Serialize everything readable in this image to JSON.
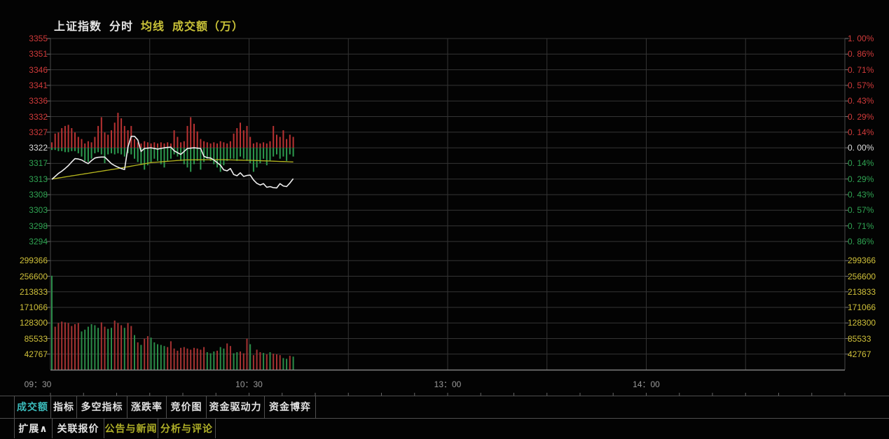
{
  "title": {
    "name": "上证指数",
    "mode": "分时",
    "ma": "均线",
    "vol": "成交额（万）"
  },
  "colors": {
    "up": "#d03a3a",
    "down": "#2fa352",
    "flat": "#dcdcdc",
    "volume_label": "#cfc03a",
    "ma_line": "#b5b51e",
    "price_line": "#efefef",
    "active_tab": "#3bbcbc",
    "news_tab": "#b0b028",
    "buy_bar": "#b83232",
    "sell_bar": "#2c9a4e",
    "vol_red": "#a63232",
    "vol_green": "#2a8c48",
    "grid": "#343434",
    "border": "#4a4a4a",
    "axis": "#808080",
    "tick": "#777777"
  },
  "tabs_row1": [
    {
      "label": "成交额",
      "state": "active"
    },
    {
      "label": "指标",
      "state": ""
    },
    {
      "label": "多空指标",
      "state": ""
    },
    {
      "label": "涨跌率",
      "state": ""
    },
    {
      "label": "竞价图",
      "state": ""
    },
    {
      "label": "资金驱动力",
      "state": ""
    },
    {
      "label": "资金博弈",
      "state": ""
    }
  ],
  "tabs_row2": [
    {
      "label": "扩展∧",
      "state": ""
    },
    {
      "label": "关联报价",
      "state": ""
    },
    {
      "label": "公告与新闻",
      "state": "news"
    },
    {
      "label": "分析与评论",
      "state": "news"
    }
  ],
  "chart_data": {
    "type": "line",
    "title": "上证指数 分时",
    "prev_close": 3322.3,
    "session": "09:30-11:30 / 13:00-15:00",
    "minutes_shown": 74,
    "grid": "on",
    "price_ticks": [
      "3355",
      "3351",
      "3346",
      "3341",
      "3336",
      "3332",
      "3327",
      "3322",
      "3317",
      "3313",
      "3308",
      "3303",
      "3298",
      "3294"
    ],
    "pct_ticks": [
      "1. 00%",
      "0. 86%",
      "0. 71%",
      "0. 57%",
      "0. 43%",
      "0. 29%",
      "0. 14%",
      "0. 00%",
      "0. 14%",
      "0. 29%",
      "0. 43%",
      "0. 57%",
      "0. 71%",
      "0. 86%"
    ],
    "volume_ticks": [
      "299366",
      "256600",
      "213833",
      "171066",
      "128300",
      "85533",
      "42767"
    ],
    "time_ticks": [
      "09：30",
      "10：30",
      "13：00",
      "14：00"
    ],
    "ylim_pct": [
      -1.0,
      1.0
    ],
    "series": [
      {
        "name": "price",
        "values": [
          3312.7,
          3313.6,
          3314.5,
          3315.2,
          3316.0,
          3316.9,
          3318.0,
          3319.0,
          3318.9,
          3318.6,
          3318.0,
          3317.5,
          3318.4,
          3319.2,
          3319.4,
          3319.5,
          3319.5,
          3318.5,
          3317.5,
          3316.9,
          3316.4,
          3316.0,
          3315.7,
          3322.5,
          3325.8,
          3325.8,
          3324.7,
          3321.2,
          3322.1,
          3322.2,
          3322.3,
          3322.1,
          3321.9,
          3322.1,
          3322.3,
          3322.4,
          3322.5,
          3321.4,
          3320.8,
          3320.3,
          3321.2,
          3322.1,
          3322.2,
          3322.3,
          3322.2,
          3322.1,
          3319.7,
          3319.3,
          3319.2,
          3318.6,
          3317.8,
          3317.0,
          3315.6,
          3315.3,
          3316.0,
          3314.2,
          3313.8,
          3314.7,
          3313.6,
          3313.9,
          3314.0,
          3312.5,
          3311.5,
          3311.0,
          3311.4,
          3310.3,
          3310.5,
          3310.2,
          3310.1,
          3311.4,
          3310.7,
          3310.5,
          3311.6,
          3312.9
        ]
      },
      {
        "name": "avg",
        "values": [
          3312.8,
          3312.96,
          3313.12,
          3313.28,
          3313.44,
          3313.6,
          3313.76,
          3313.92,
          3314.08,
          3314.24,
          3314.4,
          3314.56,
          3314.72,
          3314.88,
          3315.04,
          3315.2,
          3315.36,
          3315.52,
          3315.68,
          3315.84,
          3316.0,
          3316.18,
          3316.36,
          3316.54,
          3316.72,
          3316.9,
          3317.08,
          3317.26,
          3317.44,
          3317.62,
          3317.8,
          3317.88,
          3317.96,
          3318.04,
          3318.12,
          3318.2,
          3318.28,
          3318.36,
          3318.44,
          3318.52,
          3318.6,
          3318.61,
          3318.62,
          3318.63,
          3318.64,
          3318.65,
          3318.66,
          3318.67,
          3318.68,
          3318.69,
          3318.7,
          3318.68,
          3318.66,
          3318.64,
          3318.62,
          3318.6,
          3318.58,
          3318.56,
          3318.54,
          3318.52,
          3318.5,
          3318.46,
          3318.42,
          3318.38,
          3318.35,
          3318.31,
          3318.27,
          3318.23,
          3318.19,
          3318.15,
          3318.12,
          3318.08,
          3318.04,
          3318.0
        ]
      },
      {
        "name": "buy_strength_pct",
        "values": [
          0.05,
          0.13,
          0.14,
          0.18,
          0.2,
          0.21,
          0.18,
          0.14,
          0.1,
          0.08,
          0.04,
          0.06,
          0.05,
          0.1,
          0.2,
          0.28,
          0.14,
          0.12,
          0.16,
          0.23,
          0.32,
          0.27,
          0.2,
          0.16,
          0.2,
          0.08,
          0.05,
          0.04,
          0.06,
          0.05,
          0.04,
          0.05,
          0.04,
          0.05,
          0.04,
          0.05,
          0.04,
          0.16,
          0.1,
          0.05,
          0.06,
          0.2,
          0.28,
          0.22,
          0.15,
          0.08,
          0.06,
          0.05,
          0.04,
          0.05,
          0.04,
          0.06,
          0.05,
          0.04,
          0.06,
          0.13,
          0.18,
          0.23,
          0.16,
          0.2,
          0.1,
          0.04,
          0.05,
          0.04,
          0.05,
          0.04,
          0.06,
          0.2,
          0.12,
          0.1,
          0.16,
          0.08,
          0.12,
          0.1
        ]
      },
      {
        "name": "sell_strength_pct",
        "values": [
          0.02,
          0.02,
          0.03,
          0.03,
          0.04,
          0.04,
          0.03,
          0.03,
          0.05,
          0.08,
          0.12,
          0.13,
          0.1,
          0.05,
          0.04,
          0.06,
          0.14,
          0.06,
          0.05,
          0.06,
          0.05,
          0.06,
          0.08,
          0.05,
          0.06,
          0.1,
          0.13,
          0.15,
          0.2,
          0.16,
          0.13,
          0.1,
          0.12,
          0.15,
          0.18,
          0.12,
          0.1,
          0.06,
          0.08,
          0.12,
          0.15,
          0.18,
          0.22,
          0.15,
          0.12,
          0.2,
          0.13,
          0.1,
          0.12,
          0.15,
          0.18,
          0.22,
          0.16,
          0.12,
          0.1,
          0.1,
          0.12,
          0.08,
          0.1,
          0.12,
          0.14,
          0.22,
          0.18,
          0.14,
          0.1,
          0.16,
          0.12,
          0.08,
          0.06,
          0.1,
          0.08,
          0.12,
          0.06,
          0.08
        ]
      },
      {
        "name": "volume_wan",
        "values": [
          258000,
          118000,
          128000,
          132000,
          130000,
          128000,
          120000,
          125000,
          128000,
          105000,
          110000,
          118000,
          125000,
          122000,
          115000,
          130000,
          118000,
          112000,
          115000,
          135000,
          128000,
          122000,
          115000,
          128000,
          120000,
          95000,
          75000,
          68000,
          85000,
          92000,
          88000,
          75000,
          70000,
          68000,
          65000,
          62000,
          78000,
          58000,
          52000,
          60000,
          62000,
          58000,
          55000,
          60000,
          58000,
          55000,
          62000,
          48000,
          45000,
          50000,
          52000,
          62000,
          58000,
          72000,
          65000,
          45000,
          48000,
          50000,
          45000,
          85000,
          70000,
          40000,
          55000,
          48000,
          46000,
          42000,
          48000,
          44000,
          42000,
          40000,
          32000,
          30000,
          38000,
          36000
        ]
      },
      {
        "name": "volume_color",
        "values": [
          "g",
          "r",
          "r",
          "r",
          "r",
          "r",
          "r",
          "r",
          "r",
          "g",
          "g",
          "g",
          "g",
          "g",
          "g",
          "r",
          "r",
          "g",
          "g",
          "r",
          "r",
          "r",
          "g",
          "r",
          "r",
          "g",
          "r",
          "g",
          "r",
          "r",
          "g",
          "g",
          "g",
          "g",
          "g",
          "r",
          "r",
          "r",
          "r",
          "r",
          "r",
          "r",
          "r",
          "r",
          "r",
          "r",
          "r",
          "g",
          "g",
          "g",
          "r",
          "g",
          "g",
          "r",
          "r",
          "g",
          "g",
          "r",
          "r",
          "r",
          "g",
          "r",
          "r",
          "r",
          "g",
          "r",
          "g",
          "r",
          "r",
          "r",
          "g",
          "g",
          "r",
          "g"
        ]
      }
    ]
  }
}
